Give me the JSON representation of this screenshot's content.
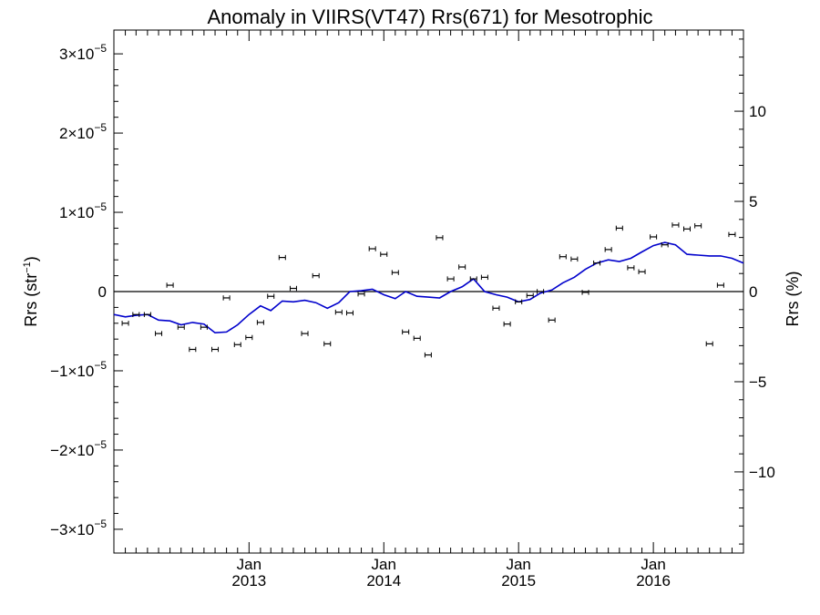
{
  "chart_data": {
    "type": "line",
    "title": "Anomaly in VIIRS(VT47) Rrs(671) for Mesotrophic",
    "ylabel_left": "Rrs (str",
    "ylabel_left_exponent": "−1",
    "ylabel_left_close": ")",
    "ylabel_right": "Rrs (%)",
    "x_range": [
      "2012-01-01",
      "2016-09-01"
    ],
    "ylim_left": [
      -3.3e-05,
      3.3e-05
    ],
    "ylim_right": [
      -14.5,
      14.5
    ],
    "grid": false,
    "legend": "none",
    "x_ticks": [
      {
        "month": "Jan",
        "year": "2013",
        "date": "2013-01-01"
      },
      {
        "month": "Jan",
        "year": "2014",
        "date": "2014-01-01"
      },
      {
        "month": "Jan",
        "year": "2015",
        "date": "2015-01-01"
      },
      {
        "month": "Jan",
        "year": "2016",
        "date": "2016-01-01"
      }
    ],
    "y_ticks_left": [
      {
        "value": 3e-05,
        "mantissa": "3",
        "base": "×10",
        "exp": "−5"
      },
      {
        "value": 2e-05,
        "mantissa": "2",
        "base": "×10",
        "exp": "−5"
      },
      {
        "value": 1e-05,
        "mantissa": "1",
        "base": "×10",
        "exp": "−5"
      },
      {
        "value": 0,
        "mantissa": "0",
        "base": "",
        "exp": ""
      },
      {
        "value": -1e-05,
        "mantissa": "−1",
        "base": "×10",
        "exp": "−5"
      },
      {
        "value": -2e-05,
        "mantissa": "−2",
        "base": "×10",
        "exp": "−5"
      },
      {
        "value": -3e-05,
        "mantissa": "−3",
        "base": "×10",
        "exp": "−5"
      }
    ],
    "y_ticks_right": [
      {
        "value": 10,
        "label": "10"
      },
      {
        "value": 5,
        "label": "5"
      },
      {
        "value": 0,
        "label": "0"
      },
      {
        "value": -5,
        "label": "−5"
      },
      {
        "value": -10,
        "label": "−10"
      }
    ],
    "colors": {
      "line": "#0000cc",
      "points": "#000000",
      "axes": "#000000"
    },
    "series": [
      {
        "type": "line",
        "dates": [
          "2012-01-01",
          "2012-02-01",
          "2012-03-01",
          "2012-04-01",
          "2012-05-01",
          "2012-06-01",
          "2012-07-01",
          "2012-08-01",
          "2012-09-01",
          "2012-10-01",
          "2012-11-01",
          "2012-12-01",
          "2013-01-01",
          "2013-02-01",
          "2013-03-01",
          "2013-04-01",
          "2013-05-01",
          "2013-06-01",
          "2013-07-01",
          "2013-08-01",
          "2013-09-01",
          "2013-10-01",
          "2013-11-01",
          "2013-12-01",
          "2014-01-01",
          "2014-02-01",
          "2014-03-01",
          "2014-04-01",
          "2014-05-01",
          "2014-06-01",
          "2014-07-01",
          "2014-08-01",
          "2014-09-01",
          "2014-10-01",
          "2014-11-01",
          "2014-12-01",
          "2015-01-01",
          "2015-02-01",
          "2015-03-01",
          "2015-04-01",
          "2015-05-01",
          "2015-06-01",
          "2015-07-01",
          "2015-08-01",
          "2015-09-01",
          "2015-10-01",
          "2015-11-01",
          "2015-12-01",
          "2016-01-01",
          "2016-02-01",
          "2016-03-01",
          "2016-04-01",
          "2016-05-01",
          "2016-06-01",
          "2016-07-01",
          "2016-08-01",
          "2016-09-01"
        ],
        "values": [
          -2.9e-06,
          -3.2e-06,
          -3e-06,
          -2.9e-06,
          -3.6e-06,
          -3.7e-06,
          -4.2e-06,
          -3.9e-06,
          -4.1e-06,
          -5.2e-06,
          -5.1e-06,
          -4.2e-06,
          -2.9e-06,
          -1.8e-06,
          -2.4e-06,
          -1.2e-06,
          -1.3e-06,
          -1.1e-06,
          -1.4e-06,
          -2.1e-06,
          -1.4e-06,
          0.0,
          1e-07,
          3e-07,
          -4e-07,
          -9e-07,
          0.0,
          -6e-07,
          -7e-07,
          -8e-07,
          0.0,
          6e-07,
          1.6e-06,
          0.0,
          -4e-07,
          -7e-07,
          -1.3e-06,
          -1e-06,
          -2e-07,
          2e-07,
          1.1e-06,
          1.8e-06,
          2.8e-06,
          3.6e-06,
          4e-06,
          3.8e-06,
          4.2e-06,
          5e-06,
          5.8e-06,
          6.2e-06,
          5.9e-06,
          4.7e-06,
          4.6e-06,
          4.5e-06,
          4.5e-06,
          4.2e-06,
          3.6e-06
        ]
      },
      {
        "type": "errorbar",
        "dates": [
          "2012-02-01",
          "2012-03-01",
          "2012-04-01",
          "2012-05-01",
          "2012-06-01",
          "2012-07-01",
          "2012-08-01",
          "2012-09-01",
          "2012-10-01",
          "2012-11-01",
          "2012-12-01",
          "2013-01-01",
          "2013-02-01",
          "2013-03-01",
          "2013-04-01",
          "2013-05-01",
          "2013-06-01",
          "2013-07-01",
          "2013-08-01",
          "2013-09-01",
          "2013-10-01",
          "2013-11-01",
          "2013-12-01",
          "2014-01-01",
          "2014-02-01",
          "2014-03-01",
          "2014-04-01",
          "2014-05-01",
          "2014-06-01",
          "2014-07-01",
          "2014-08-01",
          "2014-09-01",
          "2014-10-01",
          "2014-11-01",
          "2014-12-01",
          "2015-01-01",
          "2015-02-01",
          "2015-03-01",
          "2015-04-01",
          "2015-05-01",
          "2015-06-01",
          "2015-07-01",
          "2015-08-01",
          "2015-09-01",
          "2015-10-01",
          "2015-11-01",
          "2015-12-01",
          "2016-01-01",
          "2016-02-01",
          "2016-03-01",
          "2016-04-01",
          "2016-05-01",
          "2016-06-01",
          "2016-07-01",
          "2016-08-01"
        ],
        "values": [
          -4e-06,
          -2.9e-06,
          -2.9e-06,
          -5.3e-06,
          8e-07,
          -4.5e-06,
          -7.3e-06,
          -4.5e-06,
          -7.3e-06,
          -8e-07,
          -6.7e-06,
          -5.8e-06,
          -3.9e-06,
          -6e-07,
          4.3e-06,
          4e-07,
          -5.3e-06,
          2e-06,
          -6.6e-06,
          -2.6e-06,
          -2.7e-06,
          -3e-07,
          5.4e-06,
          4.7e-06,
          2.4e-06,
          -5.1e-06,
          -5.9e-06,
          -8e-06,
          6.8e-06,
          1.6e-06,
          3.1e-06,
          1.6e-06,
          1.8e-06,
          -2.1e-06,
          -4.1e-06,
          -1.3e-06,
          -5e-07,
          0.0,
          -3.6e-06,
          4.4e-06,
          4.1e-06,
          -1e-07,
          3.6e-06,
          5.3e-06,
          8e-06,
          3e-06,
          2.5e-06,
          6.9e-06,
          5.9e-06,
          8.4e-06,
          7.9e-06,
          8.3e-06,
          -6.6e-06,
          8e-07,
          7.2e-06
        ],
        "error": 2e-07
      }
    ]
  }
}
